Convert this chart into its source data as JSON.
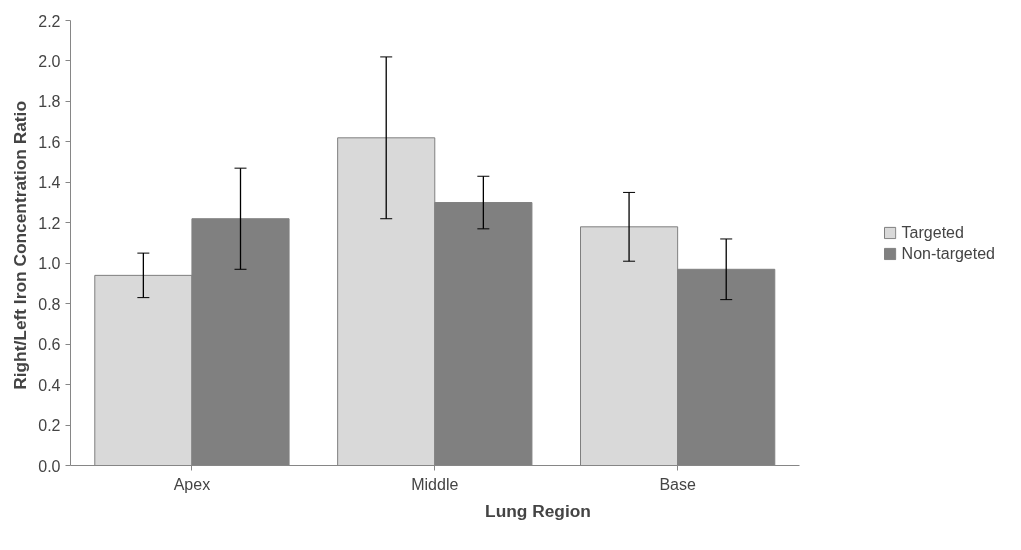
{
  "chart_data": {
    "type": "bar",
    "xlabel": "Lung Region",
    "ylabel": "Right/Left Iron  Concentration Ratio",
    "categories": [
      "Apex",
      "Middle",
      "Base"
    ],
    "series": [
      {
        "name": "Targeted",
        "color": "#d9d9d9",
        "values": [
          0.94,
          1.62,
          1.18
        ],
        "errors": [
          0.11,
          0.4,
          0.17
        ]
      },
      {
        "name": "Non-targeted",
        "color": "#808080",
        "values": [
          1.22,
          1.3,
          0.97
        ],
        "errors": [
          0.25,
          0.13,
          0.15
        ]
      }
    ],
    "ylim": [
      0,
      2.2
    ],
    "yticks": [
      {
        "value": 0,
        "label": "0.0"
      },
      {
        "value": 0.2,
        "label": "0.2"
      },
      {
        "value": 0.4,
        "label": "0.4"
      },
      {
        "value": 0.6,
        "label": "0.6"
      },
      {
        "value": 0.8,
        "label": "0.8"
      },
      {
        "value": 1,
        "label": "1.0"
      },
      {
        "value": 1.2,
        "label": "1.2"
      },
      {
        "value": 1.4,
        "label": "1.4"
      },
      {
        "value": 1.6,
        "label": "1.6"
      },
      {
        "value": 1.8,
        "label": "1.8"
      },
      {
        "value": 2,
        "label": "2.0"
      },
      {
        "value": 2.2,
        "label": "2.2"
      }
    ],
    "grid": false,
    "legend": "right"
  }
}
